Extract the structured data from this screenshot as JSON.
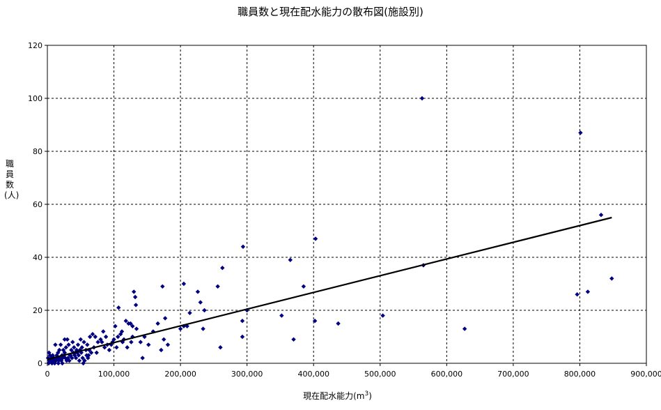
{
  "chart_data": {
    "type": "scatter",
    "title": "職員数と現在配水能力の散布図(施設別)",
    "xlabel": "現在配水能力(m",
    "xlabel_sup": "3",
    "xlabel_end": ")",
    "ylabel": "職員数(人)",
    "xlim": [
      0,
      900000
    ],
    "ylim": [
      0,
      120
    ],
    "x_ticks": [
      0,
      100000,
      200000,
      300000,
      400000,
      500000,
      600000,
      700000,
      800000,
      900000
    ],
    "x_tick_labels": [
      "0",
      "100,000",
      "200,000",
      "300,000",
      "400,000",
      "500,000",
      "600,000",
      "700,000",
      "800,000",
      "900,000"
    ],
    "y_ticks": [
      0,
      20,
      40,
      60,
      80,
      100,
      120
    ],
    "y_tick_labels": [
      "0",
      "20",
      "40",
      "60",
      "80",
      "100",
      "120"
    ],
    "grid": true,
    "legend": "none",
    "marker_color": "#000080",
    "trendline": {
      "x": [
        0,
        848000
      ],
      "y": [
        1.5,
        55
      ],
      "color": "#000000"
    },
    "points": [
      [
        563000,
        100
      ],
      [
        801000,
        87
      ],
      [
        832000,
        56
      ],
      [
        403000,
        47
      ],
      [
        294000,
        44
      ],
      [
        365000,
        39
      ],
      [
        263000,
        36
      ],
      [
        565000,
        37
      ],
      [
        385000,
        29
      ],
      [
        256000,
        29
      ],
      [
        173000,
        29
      ],
      [
        205000,
        30
      ],
      [
        226000,
        27
      ],
      [
        130000,
        27
      ],
      [
        132000,
        25
      ],
      [
        133000,
        22
      ],
      [
        107000,
        21
      ],
      [
        230000,
        23
      ],
      [
        236000,
        20
      ],
      [
        214000,
        19
      ],
      [
        300000,
        20
      ],
      [
        352000,
        18
      ],
      [
        402000,
        16
      ],
      [
        437000,
        15
      ],
      [
        293000,
        16
      ],
      [
        504000,
        18
      ],
      [
        627000,
        13
      ],
      [
        796000,
        26
      ],
      [
        812000,
        27
      ],
      [
        848000,
        32
      ],
      [
        205000,
        14
      ],
      [
        200000,
        13
      ],
      [
        234000,
        13
      ],
      [
        210000,
        14
      ],
      [
        177000,
        17
      ],
      [
        175000,
        9
      ],
      [
        181000,
        7
      ],
      [
        171000,
        5
      ],
      [
        143000,
        2
      ],
      [
        152000,
        7
      ],
      [
        159000,
        12
      ],
      [
        166000,
        15
      ],
      [
        260000,
        6
      ],
      [
        293000,
        10
      ],
      [
        370000,
        9
      ],
      [
        128000,
        14
      ],
      [
        122000,
        15
      ],
      [
        118000,
        16
      ],
      [
        125000,
        15
      ],
      [
        112000,
        12
      ],
      [
        128000,
        10
      ],
      [
        134000,
        13
      ],
      [
        126000,
        8
      ],
      [
        120000,
        6
      ],
      [
        115000,
        9
      ],
      [
        110000,
        11
      ],
      [
        102000,
        14
      ],
      [
        100000,
        9
      ],
      [
        104000,
        6
      ],
      [
        96000,
        7
      ],
      [
        93000,
        5
      ],
      [
        88000,
        10
      ],
      [
        84000,
        12
      ],
      [
        80000,
        9
      ],
      [
        76000,
        8
      ],
      [
        72000,
        10
      ],
      [
        68000,
        11
      ],
      [
        64000,
        10
      ],
      [
        60000,
        7
      ],
      [
        58000,
        5
      ],
      [
        62000,
        3
      ],
      [
        66000,
        4
      ],
      [
        55000,
        8
      ],
      [
        52000,
        6
      ],
      [
        50000,
        9
      ],
      [
        46000,
        7
      ],
      [
        44000,
        5
      ],
      [
        42000,
        4
      ],
      [
        40000,
        6
      ],
      [
        38000,
        8
      ],
      [
        36000,
        5
      ],
      [
        34000,
        3
      ],
      [
        32000,
        7
      ],
      [
        30000,
        9
      ],
      [
        28000,
        6
      ],
      [
        26000,
        4
      ],
      [
        24000,
        5
      ],
      [
        22000,
        3
      ],
      [
        20000,
        7
      ],
      [
        18000,
        5
      ],
      [
        16000,
        4
      ],
      [
        14000,
        3
      ],
      [
        12000,
        7
      ],
      [
        10000,
        2
      ],
      [
        8000,
        3
      ],
      [
        6000,
        2
      ],
      [
        5000,
        1
      ],
      [
        4000,
        3
      ],
      [
        3000,
        1
      ],
      [
        2000,
        0
      ],
      [
        7000,
        0
      ],
      [
        9000,
        1
      ],
      [
        11000,
        0
      ],
      [
        13000,
        1
      ],
      [
        15000,
        2
      ],
      [
        17000,
        1
      ],
      [
        19000,
        2
      ],
      [
        21000,
        1
      ],
      [
        23000,
        2
      ],
      [
        25000,
        3
      ],
      [
        27000,
        2
      ],
      [
        29000,
        1
      ],
      [
        31000,
        2
      ],
      [
        33000,
        1
      ],
      [
        35000,
        3
      ],
      [
        37000,
        2
      ],
      [
        39000,
        4
      ],
      [
        41000,
        3
      ],
      [
        43000,
        2
      ],
      [
        45000,
        4
      ],
      [
        47000,
        3
      ],
      [
        49000,
        5
      ],
      [
        51000,
        4
      ],
      [
        53000,
        2
      ],
      [
        56000,
        1
      ],
      [
        59000,
        3
      ],
      [
        61000,
        2
      ],
      [
        63000,
        5
      ],
      [
        54000,
        0
      ],
      [
        48000,
        1
      ],
      [
        26000,
        9
      ],
      [
        70000,
        6
      ],
      [
        74000,
        4
      ],
      [
        82000,
        8
      ],
      [
        86000,
        6
      ],
      [
        90000,
        7
      ],
      [
        98000,
        8
      ],
      [
        106000,
        10
      ],
      [
        113000,
        8
      ],
      [
        140000,
        8
      ],
      [
        146000,
        10
      ],
      [
        1000,
        2
      ],
      [
        2500,
        4
      ],
      [
        6500,
        1
      ],
      [
        9500,
        2
      ],
      [
        16500,
        0
      ],
      [
        12500,
        1
      ],
      [
        22500,
        0
      ]
    ]
  }
}
